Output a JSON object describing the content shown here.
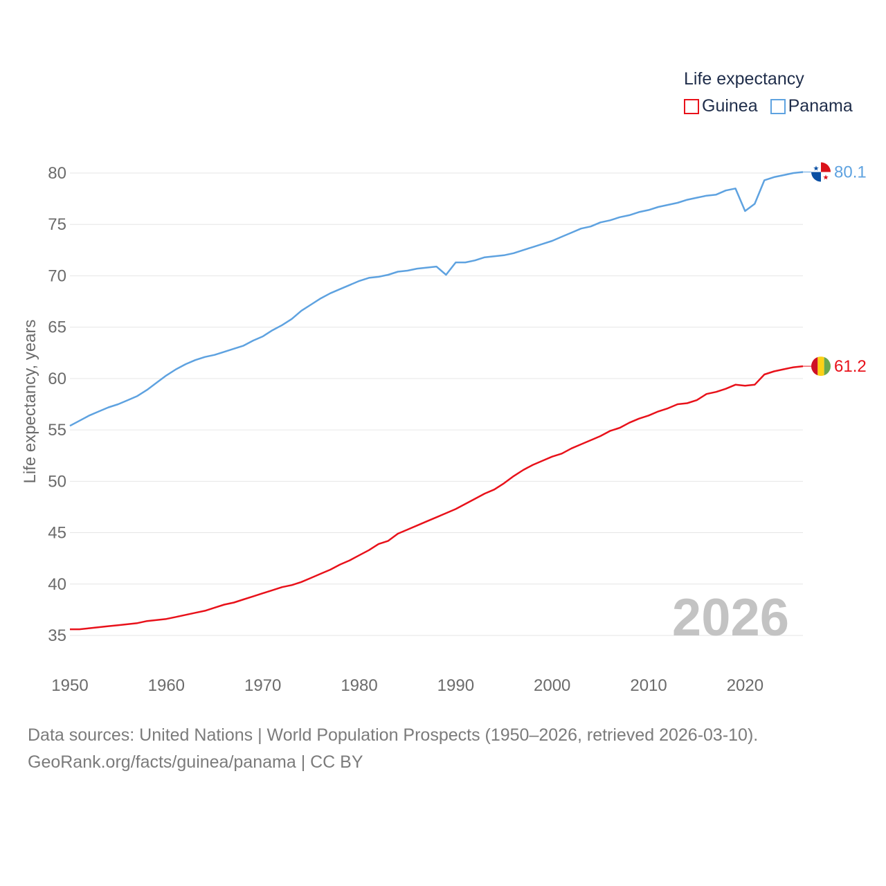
{
  "legend": {
    "title": "Life expectancy",
    "items": [
      {
        "name": "Guinea",
        "color": "#e8111a"
      },
      {
        "name": "Panama",
        "color": "#5ea2e0"
      }
    ]
  },
  "source": {
    "line1": "Data sources: United Nations | World Population Prospects (1950–2026, retrieved 2026-03-10).",
    "line2": "GeoRank.org/facts/guinea/panama | CC BY"
  },
  "chart_data": {
    "type": "line",
    "title": "Life expectancy",
    "xlabel": "",
    "ylabel": "Life expectancy, years",
    "xlim": [
      1950,
      2026
    ],
    "ylim": [
      32,
      82
    ],
    "x_ticks": [
      1950,
      1960,
      1970,
      1980,
      1990,
      2000,
      2010,
      2020
    ],
    "y_ticks": [
      35,
      40,
      45,
      50,
      55,
      60,
      65,
      70,
      75,
      80
    ],
    "watermark_year": "2026",
    "grid": true,
    "series": [
      {
        "name": "Guinea",
        "color": "#e8111a",
        "flag": "guinea-flag",
        "end_label": "61.2",
        "points": [
          [
            1950,
            35.6
          ],
          [
            1951,
            35.6
          ],
          [
            1952,
            35.7
          ],
          [
            1953,
            35.8
          ],
          [
            1954,
            35.9
          ],
          [
            1955,
            36.0
          ],
          [
            1956,
            36.1
          ],
          [
            1957,
            36.2
          ],
          [
            1958,
            36.4
          ],
          [
            1959,
            36.5
          ],
          [
            1960,
            36.6
          ],
          [
            1961,
            36.8
          ],
          [
            1962,
            37.0
          ],
          [
            1963,
            37.2
          ],
          [
            1964,
            37.4
          ],
          [
            1965,
            37.7
          ],
          [
            1966,
            38.0
          ],
          [
            1967,
            38.2
          ],
          [
            1968,
            38.5
          ],
          [
            1969,
            38.8
          ],
          [
            1970,
            39.1
          ],
          [
            1971,
            39.4
          ],
          [
            1972,
            39.7
          ],
          [
            1973,
            39.9
          ],
          [
            1974,
            40.2
          ],
          [
            1975,
            40.6
          ],
          [
            1976,
            41.0
          ],
          [
            1977,
            41.4
          ],
          [
            1978,
            41.9
          ],
          [
            1979,
            42.3
          ],
          [
            1980,
            42.8
          ],
          [
            1981,
            43.3
          ],
          [
            1982,
            43.9
          ],
          [
            1983,
            44.2
          ],
          [
            1984,
            44.9
          ],
          [
            1985,
            45.3
          ],
          [
            1986,
            45.7
          ],
          [
            1987,
            46.1
          ],
          [
            1988,
            46.5
          ],
          [
            1989,
            46.9
          ],
          [
            1990,
            47.3
          ],
          [
            1991,
            47.8
          ],
          [
            1992,
            48.3
          ],
          [
            1993,
            48.8
          ],
          [
            1994,
            49.2
          ],
          [
            1995,
            49.8
          ],
          [
            1996,
            50.5
          ],
          [
            1997,
            51.1
          ],
          [
            1998,
            51.6
          ],
          [
            1999,
            52.0
          ],
          [
            2000,
            52.4
          ],
          [
            2001,
            52.7
          ],
          [
            2002,
            53.2
          ],
          [
            2003,
            53.6
          ],
          [
            2004,
            54.0
          ],
          [
            2005,
            54.4
          ],
          [
            2006,
            54.9
          ],
          [
            2007,
            55.2
          ],
          [
            2008,
            55.7
          ],
          [
            2009,
            56.1
          ],
          [
            2010,
            56.4
          ],
          [
            2011,
            56.8
          ],
          [
            2012,
            57.1
          ],
          [
            2013,
            57.5
          ],
          [
            2014,
            57.6
          ],
          [
            2015,
            57.9
          ],
          [
            2016,
            58.5
          ],
          [
            2017,
            58.7
          ],
          [
            2018,
            59.0
          ],
          [
            2019,
            59.4
          ],
          [
            2020,
            59.3
          ],
          [
            2021,
            59.4
          ],
          [
            2022,
            60.4
          ],
          [
            2023,
            60.7
          ],
          [
            2024,
            60.9
          ],
          [
            2025,
            61.1
          ],
          [
            2026,
            61.2
          ]
        ]
      },
      {
        "name": "Panama",
        "color": "#5ea2e0",
        "flag": "panama-flag",
        "end_label": "80.1",
        "points": [
          [
            1950,
            55.4
          ],
          [
            1951,
            55.9
          ],
          [
            1952,
            56.4
          ],
          [
            1953,
            56.8
          ],
          [
            1954,
            57.2
          ],
          [
            1955,
            57.5
          ],
          [
            1956,
            57.9
          ],
          [
            1957,
            58.3
          ],
          [
            1958,
            58.9
          ],
          [
            1959,
            59.6
          ],
          [
            1960,
            60.3
          ],
          [
            1961,
            60.9
          ],
          [
            1962,
            61.4
          ],
          [
            1963,
            61.8
          ],
          [
            1964,
            62.1
          ],
          [
            1965,
            62.3
          ],
          [
            1966,
            62.6
          ],
          [
            1967,
            62.9
          ],
          [
            1968,
            63.2
          ],
          [
            1969,
            63.7
          ],
          [
            1970,
            64.1
          ],
          [
            1971,
            64.7
          ],
          [
            1972,
            65.2
          ],
          [
            1973,
            65.8
          ],
          [
            1974,
            66.6
          ],
          [
            1975,
            67.2
          ],
          [
            1976,
            67.8
          ],
          [
            1977,
            68.3
          ],
          [
            1978,
            68.7
          ],
          [
            1979,
            69.1
          ],
          [
            1980,
            69.5
          ],
          [
            1981,
            69.8
          ],
          [
            1982,
            69.9
          ],
          [
            1983,
            70.1
          ],
          [
            1984,
            70.4
          ],
          [
            1985,
            70.5
          ],
          [
            1986,
            70.7
          ],
          [
            1987,
            70.8
          ],
          [
            1988,
            70.9
          ],
          [
            1989,
            70.1
          ],
          [
            1990,
            71.3
          ],
          [
            1991,
            71.3
          ],
          [
            1992,
            71.5
          ],
          [
            1993,
            71.8
          ],
          [
            1994,
            71.9
          ],
          [
            1995,
            72.0
          ],
          [
            1996,
            72.2
          ],
          [
            1997,
            72.5
          ],
          [
            1998,
            72.8
          ],
          [
            1999,
            73.1
          ],
          [
            2000,
            73.4
          ],
          [
            2001,
            73.8
          ],
          [
            2002,
            74.2
          ],
          [
            2003,
            74.6
          ],
          [
            2004,
            74.8
          ],
          [
            2005,
            75.2
          ],
          [
            2006,
            75.4
          ],
          [
            2007,
            75.7
          ],
          [
            2008,
            75.9
          ],
          [
            2009,
            76.2
          ],
          [
            2010,
            76.4
          ],
          [
            2011,
            76.7
          ],
          [
            2012,
            76.9
          ],
          [
            2013,
            77.1
          ],
          [
            2014,
            77.4
          ],
          [
            2015,
            77.6
          ],
          [
            2016,
            77.8
          ],
          [
            2017,
            77.9
          ],
          [
            2018,
            78.3
          ],
          [
            2019,
            78.5
          ],
          [
            2020,
            76.3
          ],
          [
            2021,
            77.0
          ],
          [
            2022,
            79.3
          ],
          [
            2023,
            79.6
          ],
          [
            2024,
            79.8
          ],
          [
            2025,
            80.0
          ],
          [
            2026,
            80.1
          ]
        ]
      }
    ]
  }
}
